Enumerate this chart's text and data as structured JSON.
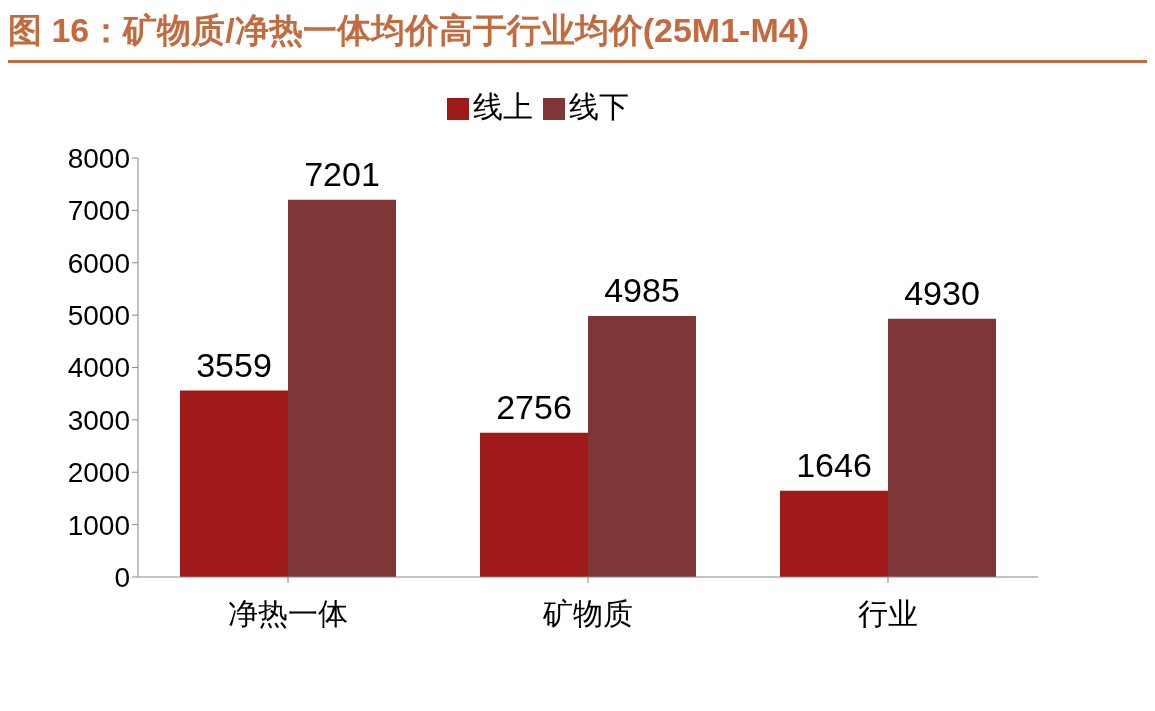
{
  "chart_data": {
    "type": "bar",
    "title": "图 16：矿物质/净热一体均价高于行业均价(25M1-M4)",
    "categories": [
      "净热一体",
      "矿物质",
      "行业"
    ],
    "series": [
      {
        "name": "线上",
        "color": "#a01a1a",
        "values": [
          3559,
          2756,
          1646
        ]
      },
      {
        "name": "线下",
        "color": "#7f3636",
        "values": [
          7201,
          4985,
          4930
        ]
      }
    ],
    "ylim": [
      0,
      8000
    ],
    "yticks": [
      0,
      1000,
      2000,
      3000,
      4000,
      5000,
      6000,
      7000,
      8000
    ],
    "data_labels": true,
    "legend": "top",
    "grid": false
  }
}
